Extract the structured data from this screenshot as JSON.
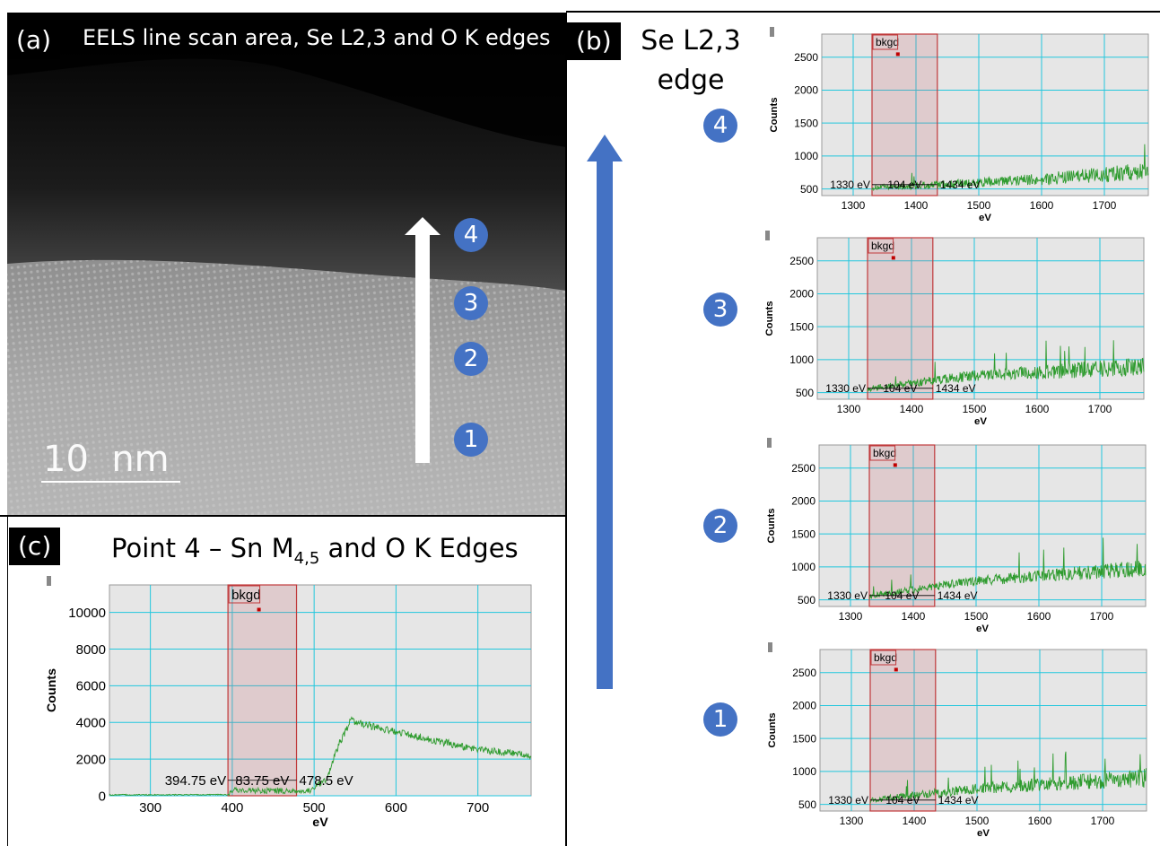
{
  "panel_a": {
    "tag": "(a)",
    "title": "EELS line scan area, Se L2,3 and O K edges",
    "scale_bar_label": "10  nm",
    "markers": [
      "4",
      "3",
      "2",
      "1"
    ]
  },
  "panel_b": {
    "tag": "(b)",
    "title_line1": "Se L2,3",
    "title_line2": "edge",
    "markers": [
      "4",
      "3",
      "2",
      "1"
    ]
  },
  "panel_c": {
    "tag": "(c)",
    "title_main": "Point 4 – Sn M",
    "title_sub": "4,5",
    "title_rest": " and O K Edges"
  },
  "colors": {
    "signal": "#2e9b2e",
    "window": "#c0393b",
    "grid": "#22c7dd",
    "plot_bg": "#e6e6e6",
    "marker": "#4472c4"
  },
  "chart_data": [
    {
      "type": "line",
      "id": "se-point-4",
      "ylabel": "Counts",
      "xlabel": "eV",
      "xlim": [
        1250,
        1770
      ],
      "ylim": [
        400,
        2850
      ],
      "xticks": [
        1300,
        1400,
        1500,
        1600,
        1700
      ],
      "yticks": [
        500,
        1000,
        1500,
        2000,
        2500
      ],
      "window": {
        "label": "bkgd",
        "start": 1330,
        "end": 1434
      },
      "window_annotation": [
        "1330 eV",
        "104 eV",
        "1434 eV"
      ],
      "trend": [
        [
          1330,
          520
        ],
        [
          1500,
          590
        ],
        [
          1600,
          650
        ],
        [
          1700,
          720
        ],
        [
          1770,
          780
        ]
      ],
      "noise": 100
    },
    {
      "type": "line",
      "id": "se-point-3",
      "ylabel": "Counts",
      "xlabel": "eV",
      "xlim": [
        1250,
        1770
      ],
      "ylim": [
        400,
        2850
      ],
      "xticks": [
        1300,
        1400,
        1500,
        1600,
        1700
      ],
      "yticks": [
        500,
        1000,
        1500,
        2000,
        2500
      ],
      "window": {
        "label": "bkgd",
        "start": 1330,
        "end": 1434
      },
      "window_annotation": [
        "1330 eV",
        "104 eV",
        "1434 eV"
      ],
      "trend": [
        [
          1330,
          560
        ],
        [
          1500,
          760
        ],
        [
          1600,
          810
        ],
        [
          1700,
          860
        ],
        [
          1770,
          900
        ]
      ],
      "noise": 110
    },
    {
      "type": "line",
      "id": "se-point-2",
      "ylabel": "Counts",
      "xlabel": "eV",
      "xlim": [
        1250,
        1770
      ],
      "ylim": [
        400,
        2850
      ],
      "xticks": [
        1300,
        1400,
        1500,
        1600,
        1700
      ],
      "yticks": [
        500,
        1000,
        1500,
        2000,
        2500
      ],
      "window": {
        "label": "bkgd",
        "start": 1330,
        "end": 1434
      },
      "window_annotation": [
        "1330 eV",
        "104 eV",
        "1434 eV"
      ],
      "trend": [
        [
          1330,
          560
        ],
        [
          1500,
          790
        ],
        [
          1600,
          860
        ],
        [
          1700,
          930
        ],
        [
          1770,
          980
        ]
      ],
      "noise": 100
    },
    {
      "type": "line",
      "id": "se-point-1",
      "ylabel": "Counts",
      "xlabel": "eV",
      "xlim": [
        1250,
        1770
      ],
      "ylim": [
        400,
        2850
      ],
      "xticks": [
        1300,
        1400,
        1500,
        1600,
        1700
      ],
      "yticks": [
        500,
        1000,
        1500,
        2000,
        2500
      ],
      "window": {
        "label": "bkgd",
        "start": 1330,
        "end": 1434
      },
      "window_annotation": [
        "1330 eV",
        "104 eV",
        "1434 eV"
      ],
      "trend": [
        [
          1330,
          560
        ],
        [
          1500,
          740
        ],
        [
          1600,
          800
        ],
        [
          1700,
          860
        ],
        [
          1770,
          900
        ]
      ],
      "noise": 110
    },
    {
      "type": "line",
      "id": "sn-o-point-4",
      "ylabel": "Counts",
      "xlabel": "eV",
      "xlim": [
        250,
        765
      ],
      "ylim": [
        0,
        11500
      ],
      "xticks": [
        300,
        400,
        500,
        600,
        700
      ],
      "yticks": [
        0,
        2000,
        4000,
        6000,
        8000,
        10000
      ],
      "window": {
        "label": "bkgd",
        "start": 394.75,
        "end": 478.5
      },
      "window_annotation": [
        "394.75 eV",
        "83.75 eV",
        "478.5 eV"
      ],
      "trend": [
        [
          250,
          50
        ],
        [
          395,
          60
        ],
        [
          400,
          300
        ],
        [
          480,
          250
        ],
        [
          495,
          300
        ],
        [
          515,
          900
        ],
        [
          530,
          2800
        ],
        [
          545,
          4100
        ],
        [
          560,
          3900
        ],
        [
          600,
          3500
        ],
        [
          650,
          3000
        ],
        [
          700,
          2500
        ],
        [
          765,
          2200
        ]
      ],
      "noise": 200
    }
  ]
}
